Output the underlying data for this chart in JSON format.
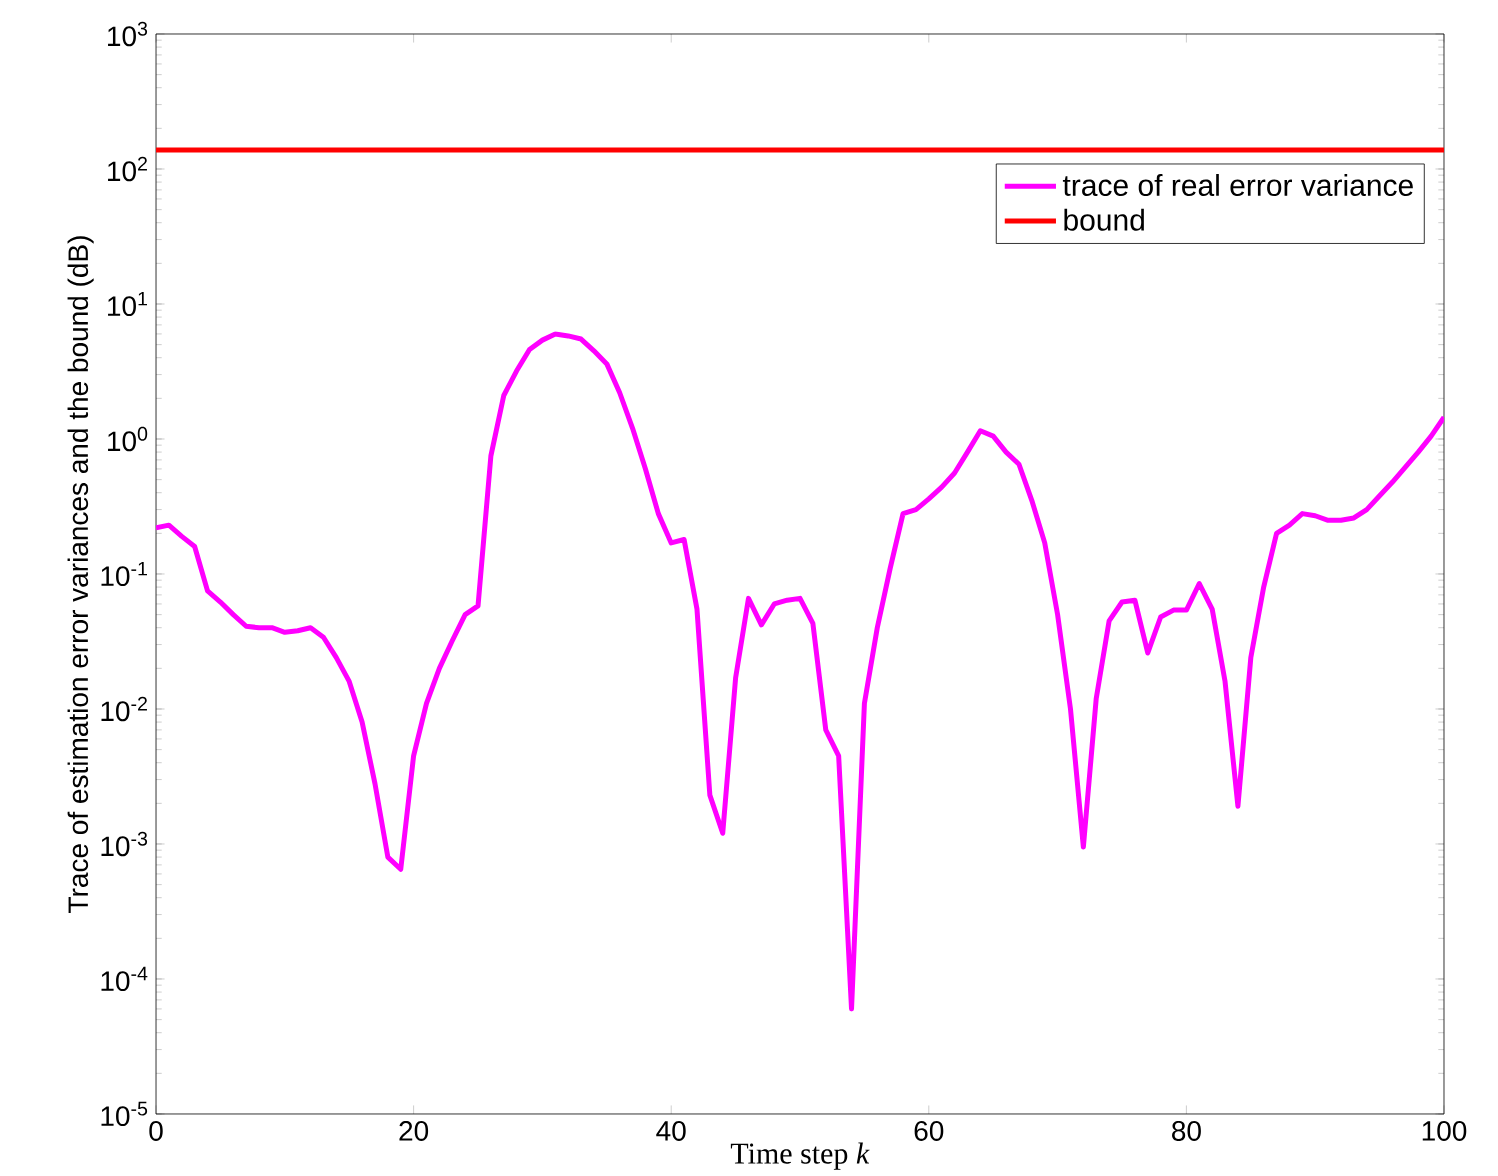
{
  "chart_data": {
    "type": "line",
    "xlabel": "Time step *k*",
    "ylabel": "Trace of estimation error variances and the bound (dB)",
    "xlim": [
      0,
      100
    ],
    "xticks": [
      0,
      20,
      40,
      60,
      80,
      100
    ],
    "ylim": [
      1e-05,
      1000
    ],
    "yticks": [
      {
        "value": 1e-05,
        "label": "10$^{-5}$"
      },
      {
        "value": 0.0001,
        "label": "10$^{-4}$"
      },
      {
        "value": 0.001,
        "label": "10$^{-3}$"
      },
      {
        "value": 0.01,
        "label": "10$^{-2}$"
      },
      {
        "value": 0.1,
        "label": "10$^{-1}$"
      },
      {
        "value": 1,
        "label": "10$^{0}$"
      },
      {
        "value": 10,
        "label": "10$^{1}$"
      },
      {
        "value": 100,
        "label": "10$^{2}$"
      },
      {
        "value": 1000,
        "label": "10$^{3}$"
      }
    ],
    "log": "y",
    "legend": "top right",
    "grid": false,
    "marker": "none",
    "line_style": "solid",
    "series": [
      {
        "name": "trace of real error variance",
        "color": "#ff00ff",
        "x": [
          0,
          1,
          2,
          3,
          4,
          5,
          6,
          7,
          8,
          9,
          10,
          11,
          12,
          13,
          14,
          15,
          16,
          17,
          18,
          19,
          20,
          21,
          22,
          23,
          24,
          25,
          26,
          27,
          28,
          29,
          30,
          31,
          32,
          33,
          34,
          35,
          36,
          37,
          38,
          39,
          40,
          41,
          42,
          43,
          44,
          45,
          46,
          47,
          48,
          49,
          50,
          51,
          52,
          53,
          54,
          55,
          56,
          57,
          58,
          59,
          60,
          61,
          62,
          63,
          64,
          65,
          66,
          67,
          68,
          69,
          70,
          71,
          72,
          73,
          74,
          75,
          76,
          77,
          78,
          79,
          80,
          81,
          82,
          83,
          84,
          85,
          86,
          87,
          88,
          89,
          90,
          91,
          92,
          93,
          94,
          95,
          96,
          97,
          98,
          99,
          100
        ],
        "values": [
          0.22,
          0.23,
          0.19,
          0.16,
          0.075,
          0.062,
          0.05,
          0.041,
          0.04,
          0.04,
          0.037,
          0.038,
          0.04,
          0.034,
          0.024,
          0.016,
          0.008,
          0.0028,
          0.0008,
          0.00065,
          0.0045,
          0.011,
          0.02,
          0.032,
          0.05,
          0.058,
          0.75,
          2.1,
          3.2,
          4.6,
          5.4,
          6.0,
          5.8,
          5.5,
          4.5,
          3.6,
          2.2,
          1.2,
          0.6,
          0.28,
          0.17,
          0.18,
          0.055,
          0.0023,
          0.0012,
          0.017,
          0.066,
          0.042,
          0.06,
          0.064,
          0.066,
          0.043,
          0.007,
          0.0045,
          6e-05,
          0.011,
          0.04,
          0.11,
          0.28,
          0.3,
          0.36,
          0.44,
          0.56,
          0.8,
          1.15,
          1.05,
          0.8,
          0.65,
          0.35,
          0.17,
          0.05,
          0.01,
          0.00095,
          0.012,
          0.045,
          0.062,
          0.064,
          0.026,
          0.048,
          0.054,
          0.054,
          0.085,
          0.055,
          0.016,
          0.0019,
          0.024,
          0.08,
          0.2,
          0.23,
          0.28,
          0.27,
          0.25,
          0.25,
          0.26,
          0.3,
          0.38,
          0.48,
          0.62,
          0.8,
          1.05,
          1.45
        ]
      },
      {
        "name": "bound",
        "color": "#ff0000",
        "x": [
          0,
          100
        ],
        "values": [
          138,
          138
        ]
      }
    ]
  }
}
